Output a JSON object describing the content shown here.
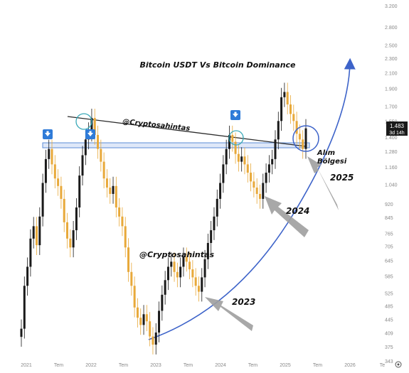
{
  "chart_data": {
    "type": "candlestick",
    "title": "Bitcoin USDT Vs Bitcoin Dominance",
    "scale": "log",
    "xlabel": "",
    "ylabel": "",
    "ylim": [
      1.0,
      3.2
    ],
    "y_ticks": [
      "3.200",
      "2.800",
      "2.500",
      "2.300",
      "2.100",
      "1.900",
      "1.700",
      "1.550",
      "1.400",
      "1.280",
      "1.160",
      "1.040",
      "920",
      "845",
      "765",
      "705",
      "645",
      "585",
      "525",
      "485",
      "445",
      "409",
      "375",
      "343"
    ],
    "x_ticks": [
      "2021",
      "Tem",
      "2022",
      "Tem",
      "2023",
      "Tem",
      "2024",
      "Tem",
      "2025",
      "Tem",
      "2026",
      "Te"
    ],
    "current_price": "1.483",
    "current_price_sub": "3d 14h",
    "colors": {
      "up": "#1a1a1a",
      "down": "#e8a93a",
      "trendline": "#2b2b2b",
      "horizontal": "#5b8bd6",
      "curve": "#3d63c9",
      "circle": "#3aa9b8",
      "arrow": "#9e9e9e",
      "axis_text": "#888888",
      "badge": "#2f7bd8"
    },
    "series": [
      {
        "values": [
          0.42,
          0.55,
          0.62,
          0.74,
          0.8,
          0.71,
          0.85,
          1.05,
          1.22,
          1.3,
          1.18,
          1.08,
          1.03,
          0.95,
          0.82,
          0.74,
          0.7,
          0.78,
          0.9,
          1.1,
          1.25,
          1.38,
          1.45,
          1.58,
          1.42,
          1.3,
          1.2,
          1.08,
          1.02,
          0.98,
          1.03,
          0.9,
          0.85,
          0.8,
          0.7,
          0.6,
          0.55,
          0.48,
          0.45,
          0.43,
          0.46,
          0.44,
          0.4,
          0.38,
          0.41,
          0.47,
          0.52,
          0.57,
          0.62,
          0.64,
          0.6,
          0.58,
          0.62,
          0.66,
          0.64,
          0.61,
          0.58,
          0.55,
          0.53,
          0.58,
          0.65,
          0.72,
          0.78,
          0.85,
          0.95,
          1.05,
          1.18,
          1.3,
          1.42,
          1.36,
          1.26,
          1.2,
          1.24,
          1.18,
          1.12,
          1.06,
          1.02,
          0.98,
          0.95,
          1.05,
          1.12,
          1.18,
          1.22,
          1.38,
          1.55,
          1.8,
          1.86,
          1.72,
          1.62,
          1.55,
          1.43,
          1.38,
          1.3,
          1.48
        ]
      }
    ],
    "annotations": [
      {
        "text": "@Cryptosahintas"
      },
      {
        "text": "@Cryptosahintas"
      },
      {
        "text": "Alım"
      },
      {
        "text": "Bölgesi"
      },
      {
        "text": "2023"
      },
      {
        "text": "2024"
      },
      {
        "text": "2025"
      }
    ]
  }
}
